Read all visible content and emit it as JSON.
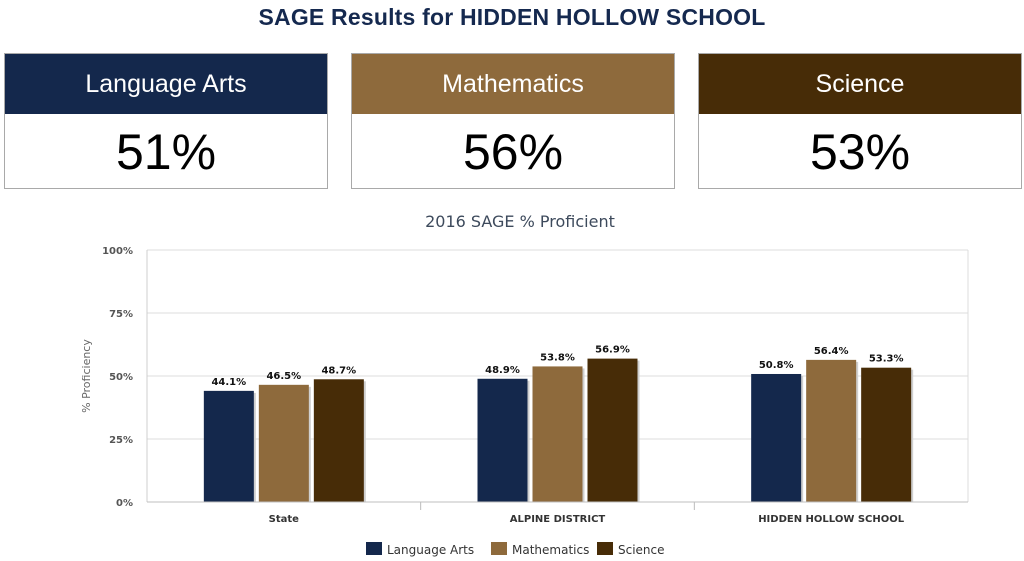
{
  "page_title": "SAGE Results for HIDDEN HOLLOW SCHOOL",
  "cards": [
    {
      "label": "Language Arts",
      "value": "51%",
      "color": "#14284c"
    },
    {
      "label": "Mathematics",
      "value": "56%",
      "color": "#8e6a3c"
    },
    {
      "label": "Science",
      "value": "53%",
      "color": "#472c07"
    }
  ],
  "chart_data": {
    "type": "bar",
    "title": "2016 SAGE % Proficient",
    "xlabel": "",
    "ylabel": "% Proficiency",
    "categories": [
      "State",
      "ALPINE DISTRICT",
      "HIDDEN HOLLOW SCHOOL"
    ],
    "ylim": [
      0,
      100
    ],
    "yticks": [
      0,
      25,
      50,
      75,
      100
    ],
    "ytick_labels": [
      "0%",
      "25%",
      "50%",
      "75%",
      "100%"
    ],
    "grid": true,
    "legend_position": "bottom",
    "series": [
      {
        "name": "Language Arts",
        "color": "#14284c",
        "values": [
          44.1,
          48.9,
          50.8
        ],
        "labels": [
          "44.1%",
          "48.9%",
          "50.8%"
        ]
      },
      {
        "name": "Mathematics",
        "color": "#8e6a3c",
        "values": [
          46.5,
          53.8,
          56.4
        ],
        "labels": [
          "46.5%",
          "53.8%",
          "56.4%"
        ]
      },
      {
        "name": "Science",
        "color": "#472c07",
        "values": [
          48.7,
          56.9,
          53.3
        ],
        "labels": [
          "48.7%",
          "56.9%",
          "53.3%"
        ]
      }
    ]
  }
}
